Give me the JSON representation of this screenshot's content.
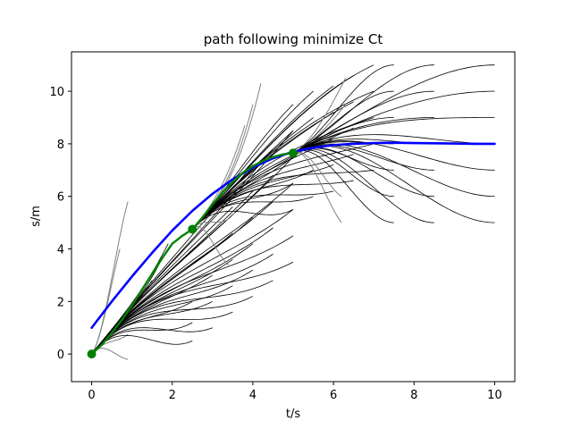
{
  "chart_data": {
    "type": "line",
    "title": "path following minimize Ct",
    "xlabel": "t/s",
    "ylabel": "s/m",
    "xlim": [
      -0.5,
      10.5
    ],
    "ylim": [
      -1.05,
      11.5
    ],
    "xticks": [
      0,
      2,
      4,
      6,
      8,
      10
    ],
    "yticks": [
      0,
      2,
      4,
      6,
      8,
      10
    ],
    "grid": false,
    "colors": {
      "candidates": "#000000",
      "discarded": "#808080",
      "reference": "#0000ff",
      "selected": "#008000"
    },
    "series": [
      {
        "role": "reference",
        "x": [
          0,
          0.5,
          1,
          1.5,
          2,
          2.5,
          3,
          3.5,
          4,
          4.5,
          5,
          5.5,
          6,
          6.5,
          7,
          7.5,
          8,
          8.5,
          9,
          9.5,
          10
        ],
        "y": [
          1.0,
          2.0,
          2.95,
          3.85,
          4.7,
          5.45,
          6.1,
          6.65,
          7.1,
          7.45,
          7.7,
          7.85,
          7.95,
          8.0,
          8.03,
          8.04,
          8.03,
          8.02,
          8.01,
          8.0,
          8.0
        ]
      },
      {
        "role": "selected",
        "x": [
          0,
          0.25,
          0.5,
          0.75,
          1,
          1.25,
          1.5,
          1.75,
          2,
          2.25,
          2.5,
          2.75,
          3,
          3.25,
          3.5,
          3.75,
          4,
          4.25,
          4.5,
          4.75,
          5
        ],
        "y": [
          0,
          0.35,
          0.8,
          1.3,
          1.85,
          2.45,
          3.05,
          3.65,
          4.2,
          4.5,
          4.75,
          5.2,
          5.7,
          6.15,
          6.55,
          6.9,
          7.15,
          7.35,
          7.5,
          7.6,
          7.65
        ]
      }
    ],
    "waypoints": {
      "t": [
        0,
        2.5,
        5
      ],
      "s": [
        0,
        4.75,
        7.65
      ]
    },
    "candidate_sets": [
      {
        "start": [
          0,
          0
        ],
        "v0": 1.9,
        "ends": [
          [
            2.5,
            0.5,
            0.7
          ],
          [
            2.5,
            1.2,
            0.9
          ],
          [
            2.5,
            2.0,
            0.9
          ],
          [
            3.0,
            1.0,
            0.6
          ],
          [
            3.0,
            2.0,
            0.8
          ],
          [
            3.0,
            3.0,
            1.0
          ],
          [
            3.0,
            4.0,
            1.2
          ],
          [
            3.5,
            1.6,
            0.7
          ],
          [
            3.5,
            2.6,
            0.9
          ],
          [
            3.5,
            3.6,
            1.1
          ],
          [
            3.5,
            4.6,
            1.3
          ],
          [
            3.5,
            5.6,
            1.5
          ],
          [
            4.0,
            2.2,
            0.8
          ],
          [
            4.0,
            3.2,
            1.0
          ],
          [
            4.0,
            4.2,
            1.2
          ],
          [
            4.0,
            5.2,
            1.4
          ],
          [
            4.0,
            6.2,
            1.6
          ],
          [
            4.0,
            7.2,
            1.8
          ],
          [
            4.5,
            2.8,
            0.8
          ],
          [
            4.5,
            3.8,
            1.0
          ],
          [
            4.5,
            4.8,
            1.2
          ],
          [
            4.5,
            5.8,
            1.4
          ],
          [
            4.5,
            6.8,
            1.6
          ],
          [
            4.5,
            7.8,
            1.8
          ],
          [
            5.0,
            3.5,
            0.8
          ],
          [
            5.0,
            4.5,
            1.0
          ],
          [
            5.0,
            5.5,
            1.2
          ],
          [
            5.0,
            6.5,
            1.4
          ],
          [
            5.0,
            7.5,
            1.6
          ],
          [
            5.0,
            8.5,
            1.8
          ],
          [
            1.5,
            2.8,
            2.5
          ],
          [
            1.7,
            3.5,
            3.0
          ],
          [
            1.9,
            4.2,
            3.0
          ]
        ],
        "discarded_ends": [
          [
            0.9,
            -0.2,
            -0.2
          ],
          [
            0.9,
            0.75,
            1.2
          ],
          [
            0.9,
            5.8,
            5.5
          ],
          [
            0.7,
            4.0,
            6.0
          ]
        ]
      },
      {
        "start": [
          2.5,
          4.75
        ],
        "v0": 1.7,
        "ends": [
          [
            5.0,
            5.5,
            0.8
          ],
          [
            5.0,
            6.5,
            1.0
          ],
          [
            5.0,
            7.5,
            1.2
          ],
          [
            5.0,
            8.5,
            1.4
          ],
          [
            5.0,
            9.5,
            1.5
          ],
          [
            5.5,
            6.0,
            0.6
          ],
          [
            5.5,
            7.0,
            0.8
          ],
          [
            5.5,
            8.0,
            1.0
          ],
          [
            5.5,
            9.0,
            1.2
          ],
          [
            5.5,
            10.0,
            1.3
          ],
          [
            6.0,
            6.2,
            0.4
          ],
          [
            6.0,
            7.2,
            0.6
          ],
          [
            6.0,
            8.2,
            0.8
          ],
          [
            6.0,
            9.2,
            1.0
          ],
          [
            6.0,
            10.2,
            1.1
          ],
          [
            6.5,
            6.6,
            0.3
          ],
          [
            6.5,
            7.6,
            0.5
          ],
          [
            6.5,
            8.6,
            0.7
          ],
          [
            6.5,
            9.6,
            0.8
          ],
          [
            6.5,
            10.6,
            0.9
          ],
          [
            7.0,
            7.0,
            0.2
          ],
          [
            7.0,
            8.0,
            0.4
          ],
          [
            7.0,
            9.0,
            0.5
          ],
          [
            7.0,
            10.0,
            0.6
          ],
          [
            7.0,
            11.0,
            0.7
          ]
        ],
        "discarded_ends": [
          [
            3.4,
            3.4,
            -1.0
          ],
          [
            3.6,
            5.5,
            2.5
          ],
          [
            3.8,
            8.7,
            5.0
          ],
          [
            4.0,
            9.5,
            6.0
          ],
          [
            4.2,
            10.3,
            6.5
          ]
        ]
      },
      {
        "start": [
          5,
          7.65
        ],
        "v0": 0.8,
        "ends": [
          [
            7.5,
            5.0,
            0.0
          ],
          [
            7.5,
            6.0,
            0.0
          ],
          [
            7.5,
            7.0,
            0.0
          ],
          [
            7.5,
            8.0,
            0.0
          ],
          [
            7.5,
            9.0,
            0.0
          ],
          [
            7.5,
            10.0,
            0.0
          ],
          [
            7.5,
            11.0,
            0.0
          ],
          [
            8.5,
            5.0,
            0.0
          ],
          [
            8.5,
            6.0,
            0.0
          ],
          [
            8.5,
            7.0,
            0.0
          ],
          [
            8.5,
            8.0,
            0.0
          ],
          [
            8.5,
            9.0,
            0.0
          ],
          [
            8.5,
            10.0,
            0.0
          ],
          [
            8.5,
            11.0,
            0.0
          ],
          [
            10.0,
            5.0,
            0.0
          ],
          [
            10.0,
            6.0,
            0.0
          ],
          [
            10.0,
            7.0,
            0.0
          ],
          [
            10.0,
            8.0,
            0.0
          ],
          [
            10.0,
            9.0,
            0.0
          ],
          [
            10.0,
            10.0,
            0.0
          ],
          [
            10.0,
            11.0,
            0.0
          ]
        ],
        "discarded_ends": [
          [
            6.2,
            5.0,
            -2.0
          ],
          [
            6.2,
            6.0,
            -1.0
          ],
          [
            6.3,
            9.5,
            2.0
          ],
          [
            6.3,
            10.5,
            3.0
          ]
        ]
      }
    ]
  }
}
